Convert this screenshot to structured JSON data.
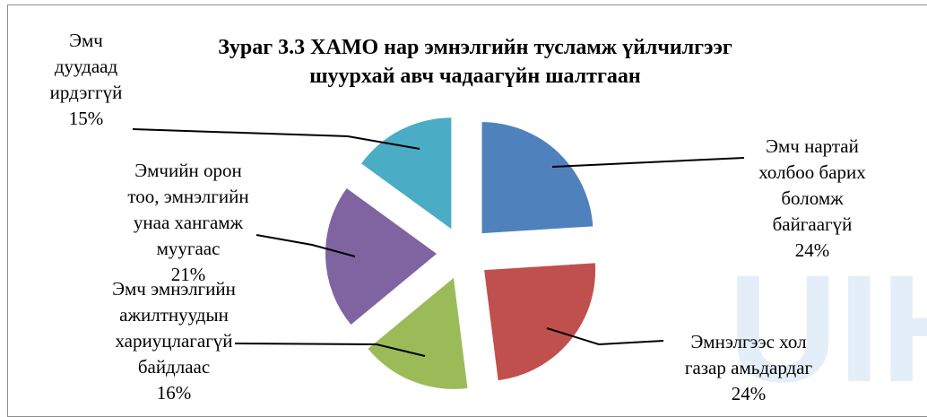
{
  "chart_data": {
    "type": "pie",
    "exploded": true,
    "title_lines": [
      "Зураг 3.3 ХАМО нар эмнэлгийн тусламж үйлчилгээг",
      "шуурхай авч чадаагүйн шалтгаан"
    ],
    "slices": [
      {
        "label_lines": [
          "Эмч нартай",
          "холбоо барих",
          "боломж",
          "байгаагүй"
        ],
        "value": 24,
        "pct": "24%",
        "color": "#4F81BD"
      },
      {
        "label_lines": [
          "Эмнэлгээс хол",
          "газар амьдардаг"
        ],
        "value": 24,
        "pct": "24%",
        "color": "#C0504D"
      },
      {
        "label_lines": [
          "Эмч эмнэлгийн",
          "ажилтнуудын",
          "хариуцлагагүй",
          "байдлаас"
        ],
        "value": 16,
        "pct": "16%",
        "color": "#9BBB59"
      },
      {
        "label_lines": [
          "Эмчийн орон",
          "тоо, эмнэлгийн",
          "унаа хангамж",
          "муугаас"
        ],
        "value": 21,
        "pct": "21%",
        "color": "#8064A2"
      },
      {
        "label_lines": [
          "Эмч",
          "дуудаад",
          "ирдэггүй"
        ],
        "value": 15,
        "pct": "15%",
        "color": "#4BACC6"
      }
    ],
    "legend": "none"
  },
  "watermark": {
    "text": "UIH.",
    "color": "#e3eef8"
  }
}
